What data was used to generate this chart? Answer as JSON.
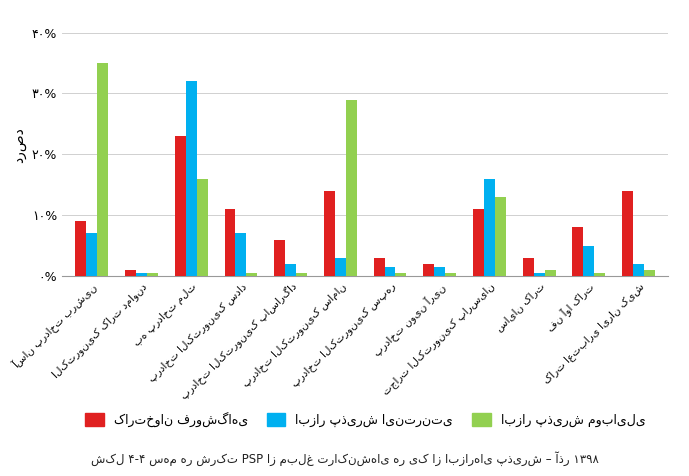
{
  "categories": [
    "آسان پرداخت برشین",
    "الکترونیک کارت دماوند",
    "به پرداخت ملت",
    "پرداخت الکترونیک سداد",
    "پرداخت الکترونیک پاسارگاد",
    "پرداخت الکترونیک سامان",
    "پرداخت الکترونیک سپهر",
    "پرداخت نوین آرین",
    "تجارت الکترونیک پارسیان",
    "سایان کارت",
    "فن آوا کارت",
    "کارت اعتباری ایران کیش"
  ],
  "red_values": [
    9.0,
    1.0,
    23.0,
    11.0,
    6.0,
    14.0,
    3.0,
    2.0,
    11.0,
    3.0,
    8.0,
    14.0
  ],
  "blue_values": [
    7.0,
    0.5,
    32.0,
    7.0,
    2.0,
    3.0,
    1.5,
    1.5,
    16.0,
    0.5,
    5.0,
    2.0
  ],
  "green_values": [
    35.0,
    0.5,
    16.0,
    0.5,
    0.5,
    29.0,
    0.5,
    0.5,
    13.0,
    1.0,
    0.5,
    1.0
  ],
  "red_color": "#e02020",
  "blue_color": "#00b0f0",
  "green_color": "#92d050",
  "ylabel": "درصد",
  "ytick_labels": [
    "۰%",
    "۱۰%",
    "۲۰%",
    "۳۰%",
    "۴۰%"
  ],
  "ytick_values": [
    0,
    10,
    20,
    30,
    40
  ],
  "ylim": [
    0,
    43
  ],
  "legend_red": "کارتخوان فروشگاهی",
  "legend_blue": "ابزار پذیرش اینترنتی",
  "legend_green": "ابزار پذیرش موبایلی",
  "caption": "شکل ۴-۴ سهم هر شرکت PSP از مبلغ تراکنش‌های هر یک از ابزارهای پذیرش – آذر ۱۳۹۸",
  "background_color": "#ffffff",
  "grid_color": "#d0d0d0",
  "bar_width": 0.22
}
